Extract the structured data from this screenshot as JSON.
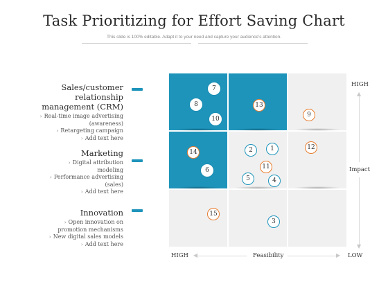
{
  "title": "Task Prioritizing for Effort Saving Chart",
  "subtitle": "This slide is 100% editable. Adapt it to your need and capture your audience's attention.",
  "categories": [
    {
      "title_lines": [
        "Sales/customer",
        "relationship",
        "management (CRM)"
      ],
      "items": [
        "Real-time image advertising",
        "(awareness)",
        "Retargeting campaign",
        "Add text here"
      ]
    },
    {
      "title_lines": [
        "Marketing"
      ],
      "items": [
        "Digital attribution",
        "modeling",
        "Performance advertising",
        "(sales)",
        "Add text here"
      ]
    },
    {
      "title_lines": [
        "Innovation"
      ],
      "items": [
        "Open innovation on",
        "promotion mechanisms",
        "New digital sales models",
        "Add text here"
      ]
    }
  ],
  "axes": {
    "y_high": "HIGH",
    "y_label": "Impact",
    "x_high": "HIGH",
    "x_label": "Feasibility",
    "x_low": "LOW"
  },
  "grid": {
    "cells": [
      [
        "blue",
        "blue",
        "grey"
      ],
      [
        "blue",
        "grey",
        "grey"
      ],
      [
        "grey",
        "grey",
        "grey"
      ]
    ]
  },
  "tasks": [
    {
      "n": "7",
      "style": "white"
    },
    {
      "n": "8",
      "style": "white"
    },
    {
      "n": "10",
      "style": "white"
    },
    {
      "n": "13",
      "style": "orange"
    },
    {
      "n": "9",
      "style": "orange"
    },
    {
      "n": "14",
      "style": "orange"
    },
    {
      "n": "6",
      "style": "white"
    },
    {
      "n": "2",
      "style": "teal"
    },
    {
      "n": "1",
      "style": "teal"
    },
    {
      "n": "11",
      "style": "orange"
    },
    {
      "n": "5",
      "style": "teal"
    },
    {
      "n": "4",
      "style": "teal"
    },
    {
      "n": "12",
      "style": "orange"
    },
    {
      "n": "15",
      "style": "orange"
    },
    {
      "n": "3",
      "style": "teal"
    }
  ],
  "colors": {
    "accent": "#1e94bb",
    "orange": "#e87d2e",
    "grey_cell": "#f0f0f0"
  }
}
